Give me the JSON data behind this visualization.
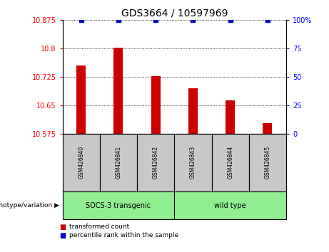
{
  "title": "GDS3664 / 10597969",
  "samples": [
    "GSM426840",
    "GSM426841",
    "GSM426842",
    "GSM426843",
    "GSM426844",
    "GSM426845"
  ],
  "red_values": [
    10.755,
    10.802,
    10.726,
    10.695,
    10.662,
    10.603
  ],
  "blue_values": [
    100,
    100,
    100,
    100,
    100,
    100
  ],
  "ylim_left": [
    10.575,
    10.875
  ],
  "ylim_right": [
    0,
    100
  ],
  "left_ticks": [
    10.575,
    10.65,
    10.725,
    10.8,
    10.875
  ],
  "left_tick_labels": [
    "10.575",
    "10.65",
    "10.725",
    "10.8",
    "10.875"
  ],
  "right_ticks": [
    0,
    25,
    50,
    75,
    100
  ],
  "right_tick_labels": [
    "0",
    "25",
    "50",
    "75",
    "100%"
  ],
  "group_info": [
    {
      "label": "SOCS-3 transgenic",
      "start": 0,
      "end": 3
    },
    {
      "label": "wild type",
      "start": 3,
      "end": 6
    }
  ],
  "bar_color": "#CC0000",
  "dot_color": "#0000CC",
  "sample_box_color": "#C8C8C8",
  "green_color": "#90EE90",
  "bar_width": 0.25,
  "base_value": 10.575,
  "legend": [
    {
      "label": "transformed count",
      "color": "#CC0000"
    },
    {
      "label": "percentile rank within the sample",
      "color": "#0000CC"
    }
  ]
}
